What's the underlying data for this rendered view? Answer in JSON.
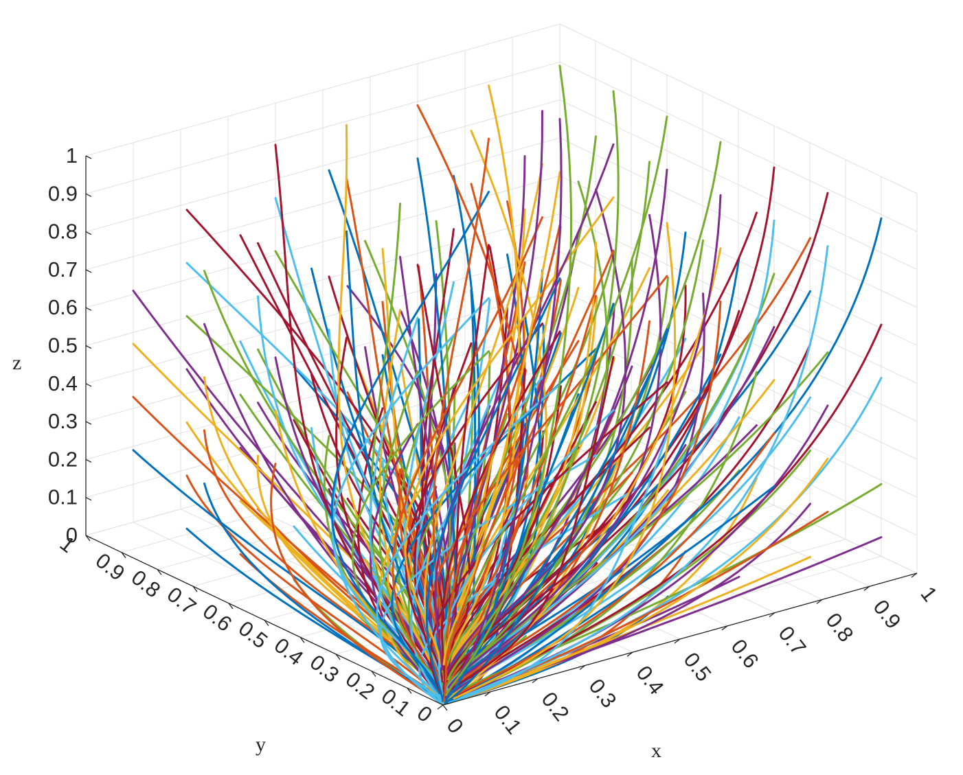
{
  "chart_data": {
    "type": "line",
    "title": "",
    "xlabel": "x",
    "ylabel": "y",
    "zlabel": "z",
    "xlim": [
      0,
      1
    ],
    "ylim": [
      0,
      1
    ],
    "zlim": [
      0,
      1
    ],
    "grid": true,
    "legend": "none",
    "x_ticks": [
      "0",
      "0.1",
      "0.2",
      "0.3",
      "0.4",
      "0.5",
      "0.6",
      "0.7",
      "0.8",
      "0.9",
      "1"
    ],
    "y_ticks": [
      "0",
      "0.1",
      "0.2",
      "0.3",
      "0.4",
      "0.5",
      "0.6",
      "0.7",
      "0.8",
      "0.9",
      "1"
    ],
    "z_ticks": [
      "0",
      "0.1",
      "0.2",
      "0.3",
      "0.4",
      "0.5",
      "0.6",
      "0.7",
      "0.8",
      "0.9",
      "1"
    ],
    "colors": [
      "#0072BD",
      "#D95319",
      "#EDB120",
      "#7E2F8E",
      "#77AC30",
      "#4DBEEE",
      "#A2142F"
    ],
    "description_of_series": "Each series is a 3-D trajectory that starts at an initial point (x0, y0, z0) on a 7x7x7-style grid of initial conditions and converges toward the point (0, 0, 0) along the bottom-front edge of the cube.",
    "series": [
      {
        "start": [
          1.0,
          1.0,
          0.9
        ],
        "color": "#0072BD"
      },
      {
        "start": [
          1.0,
          0.9,
          0.6
        ],
        "color": "#D95319"
      },
      {
        "start": [
          1.0,
          0.8,
          0.45
        ],
        "color": "#EDB120"
      },
      {
        "start": [
          1.0,
          0.7,
          0.3
        ],
        "color": "#7E2F8E"
      },
      {
        "start": [
          1.0,
          0.6,
          0.2
        ],
        "color": "#77AC30"
      },
      {
        "start": [
          1.0,
          0.4,
          0.1
        ],
        "color": "#4DBEEE"
      },
      {
        "start": [
          1.0,
          0.2,
          0.05
        ],
        "color": "#A2142F"
      }
    ]
  }
}
